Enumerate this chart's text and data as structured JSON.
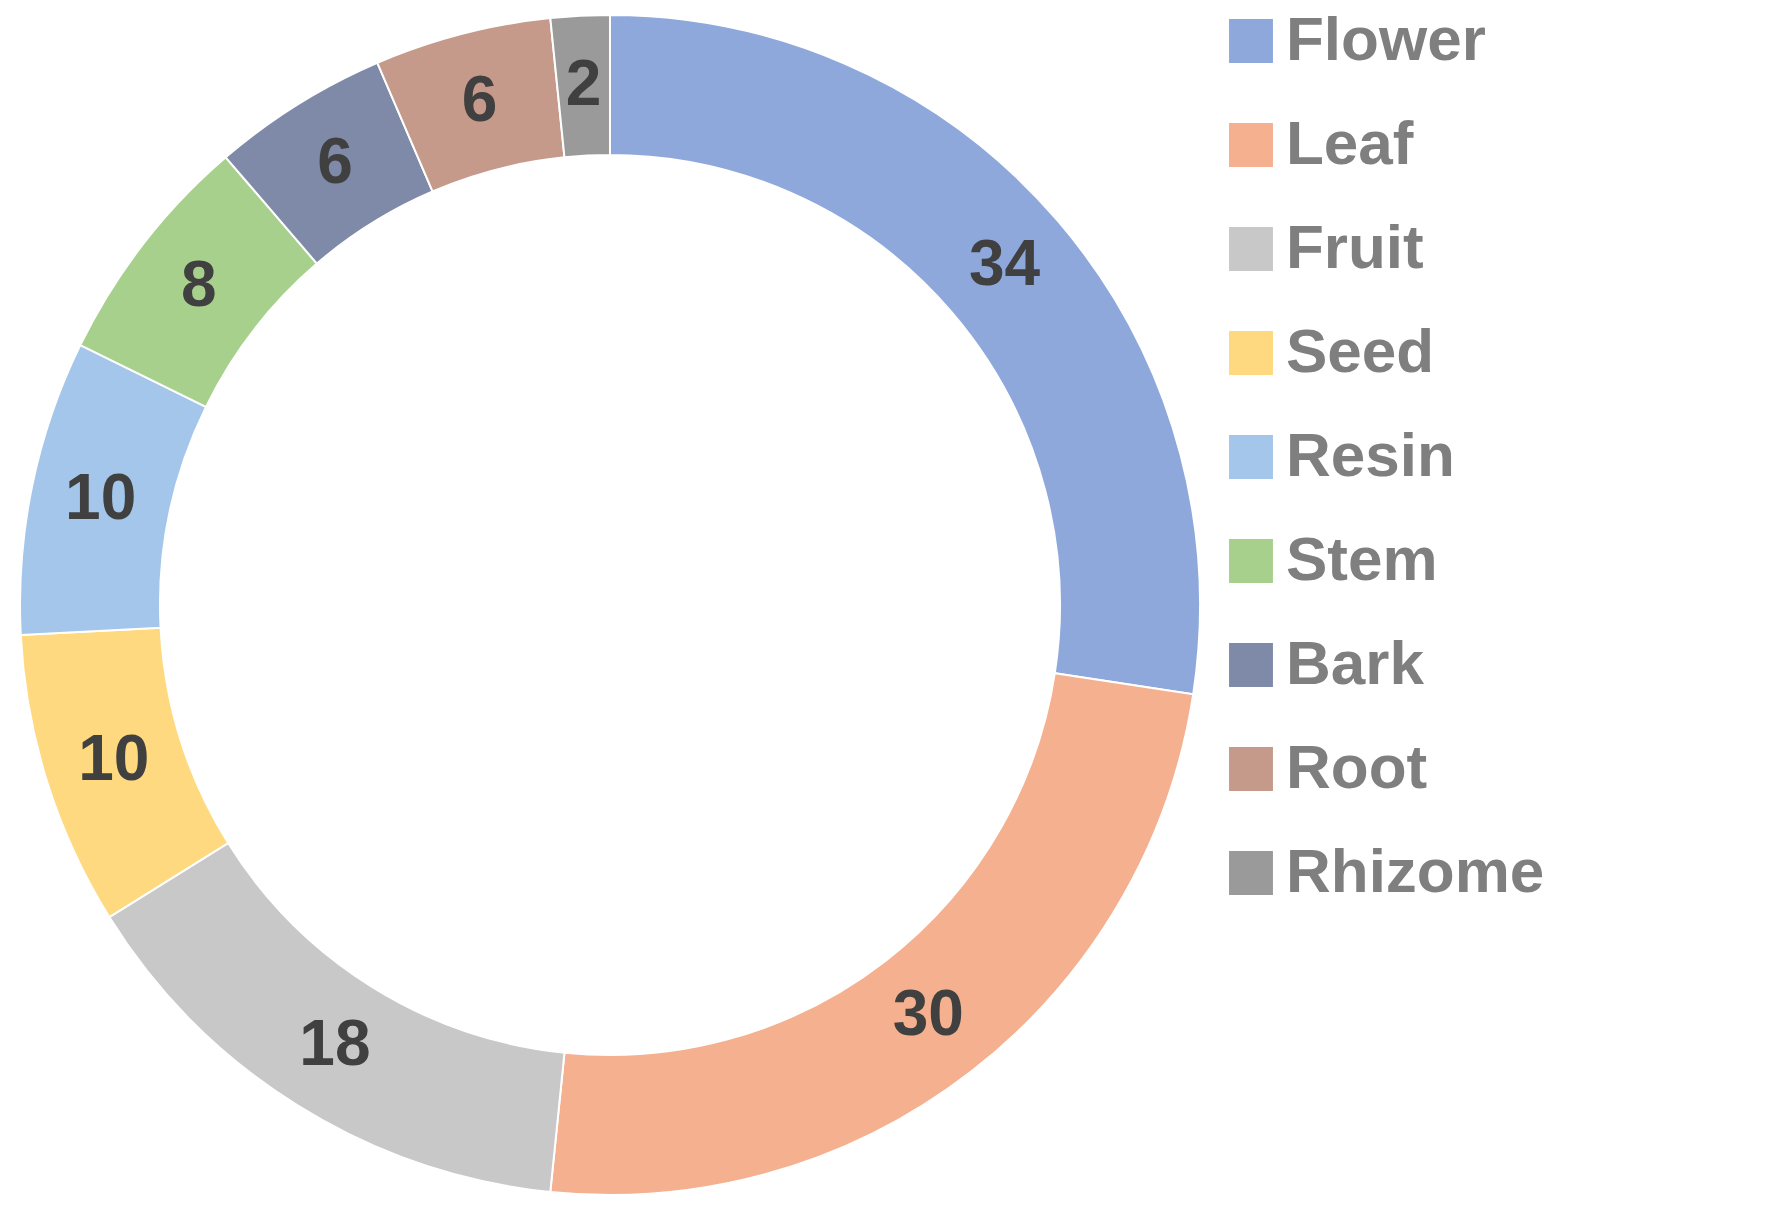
{
  "chart_data": {
    "type": "donut",
    "categories": [
      "Flower",
      "Leaf",
      "Fruit",
      "Seed",
      "Resin",
      "Stem",
      "Bark",
      "Root",
      "Rhizome"
    ],
    "values": [
      34,
      30,
      18,
      10,
      10,
      8,
      6,
      6,
      2
    ],
    "colors": [
      "#8fa8dc",
      "#f4b08f",
      "#c8c8c8",
      "#fed97f",
      "#a3c6ea",
      "#a8d08d",
      "#7f8aa8",
      "#c59a8a",
      "#9a9a9a"
    ],
    "data_labels": true,
    "legend": "right"
  }
}
